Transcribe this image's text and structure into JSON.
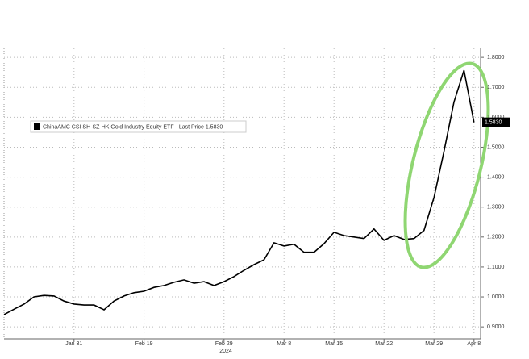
{
  "chart_data": {
    "type": "line",
    "legend": "ChinaAMC CSI SH-SZ-HK Gold Industry Equity ETF - Last Price 1.5830",
    "price_tag": "1.5830",
    "x_label": "2024",
    "categories": [
      null,
      null,
      null,
      null,
      null,
      null,
      null,
      "Jan 31",
      null,
      null,
      null,
      null,
      null,
      null,
      "Feb 19",
      null,
      null,
      null,
      null,
      null,
      null,
      null,
      "Feb 29",
      null,
      null,
      null,
      null,
      null,
      "Mar 8",
      null,
      null,
      null,
      null,
      "Mar 15",
      null,
      null,
      null,
      null,
      "Mar 22",
      null,
      null,
      null,
      null,
      "Mar 29",
      null,
      null,
      null,
      "Apr 8"
    ],
    "series": [
      {
        "name": "ChinaAMC CSI SH-SZ-HK Gold Industry Equity ETF",
        "color": "#000000",
        "values": [
          0.941,
          0.959,
          0.976,
          1.0,
          1.005,
          1.003,
          0.986,
          0.976,
          0.973,
          0.973,
          0.957,
          0.986,
          1.003,
          1.014,
          1.019,
          1.032,
          1.038,
          1.049,
          1.057,
          1.046,
          1.051,
          1.038,
          1.051,
          1.068,
          1.089,
          1.108,
          1.124,
          1.181,
          1.17,
          1.176,
          1.149,
          1.149,
          1.178,
          1.216,
          1.205,
          1.2,
          1.195,
          1.227,
          1.189,
          1.205,
          1.192,
          1.195,
          1.222,
          1.332,
          1.486,
          1.651,
          1.757,
          1.583
        ]
      }
    ],
    "ylim": [
      0.86,
      1.83
    ],
    "yticks": [
      {
        "value": 0.9,
        "label": "0.9000"
      },
      {
        "value": 1.0,
        "label": "1.0000"
      },
      {
        "value": 1.1,
        "label": "1.1000"
      },
      {
        "value": 1.2,
        "label": "1.2000"
      },
      {
        "value": 1.3,
        "label": "1.3000"
      },
      {
        "value": 1.4,
        "label": "1.4000"
      },
      {
        "value": 1.5,
        "label": "1.5000"
      },
      {
        "value": 1.6,
        "label": "1.6000"
      },
      {
        "value": 1.7,
        "label": "1.7000"
      },
      {
        "value": 1.8,
        "label": "1.8000"
      }
    ],
    "grid": true
  }
}
